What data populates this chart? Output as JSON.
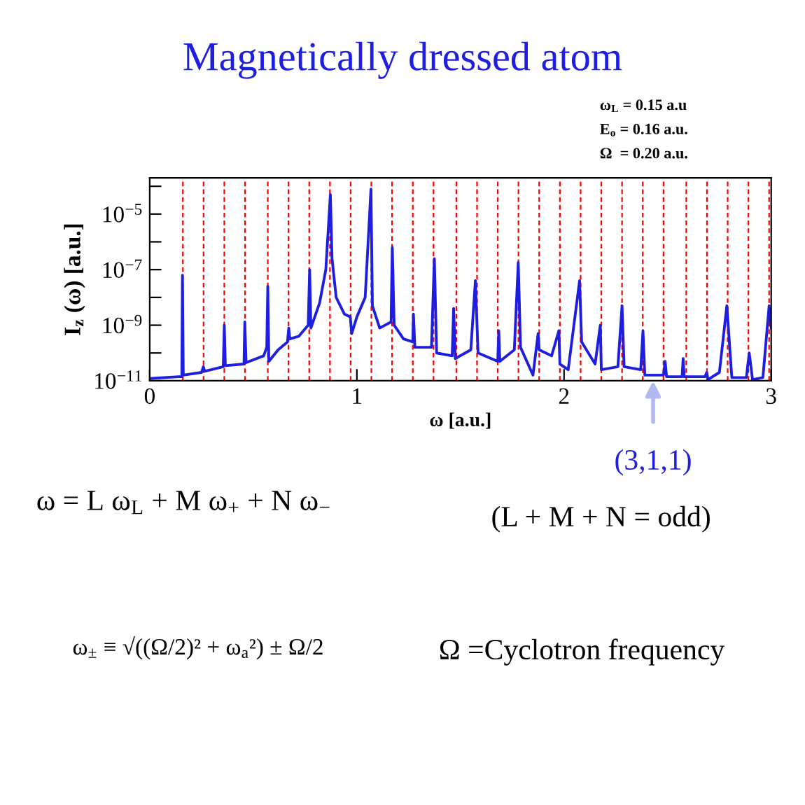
{
  "chart_data": {
    "type": "line",
    "title": "Magnetically dressed atom",
    "xlabel": "ω [a.u.]",
    "ylabel": "I$_{z}$ (ω) [a.u.]",
    "log": "y",
    "xlim": [
      0,
      3
    ],
    "xticks": [
      0,
      1,
      2,
      3
    ],
    "ylim": [
      1e-11,
      0.0002
    ],
    "yticks": [
      {
        "value": 1e-11,
        "label": "10$^{−11}$"
      },
      {
        "value": 1e-10,
        "label": null
      },
      {
        "value": 1e-09,
        "label": "10$^{−9}$"
      },
      {
        "value": 1e-08,
        "label": null
      },
      {
        "value": 1e-07,
        "label": "10$^{−7}$"
      },
      {
        "value": 1e-06,
        "label": null
      },
      {
        "value": 1e-05,
        "label": "10$^{−5}$"
      },
      {
        "value": 0.0001,
        "label": null
      }
    ],
    "grid": false,
    "legend": false,
    "marker": "none",
    "line_style": "solid",
    "series": [
      {
        "color": "#1e1ee0",
        "x": [
          0,
          0.14,
          0.155,
          0.158,
          0.162,
          0.25,
          0.259,
          0.265,
          0.355,
          0.36,
          0.365,
          0.455,
          0.459,
          0.465,
          0.55,
          0.565,
          0.57,
          0.575,
          0.62,
          0.665,
          0.671,
          0.676,
          0.72,
          0.765,
          0.772,
          0.778,
          0.82,
          0.85,
          0.872,
          0.88,
          0.9,
          0.94,
          0.968,
          0.975,
          1.0,
          1.04,
          1.068,
          1.075,
          1.11,
          1.165,
          1.171,
          1.18,
          1.225,
          1.27,
          1.273,
          1.28,
          1.36,
          1.374,
          1.385,
          1.46,
          1.467,
          1.475,
          1.55,
          1.572,
          1.585,
          1.68,
          1.685,
          1.69,
          1.76,
          1.779,
          1.79,
          1.85,
          1.875,
          1.88,
          1.94,
          1.975,
          1.98,
          2.02,
          2.075,
          2.085,
          2.15,
          2.175,
          2.18,
          2.26,
          2.28,
          2.29,
          2.37,
          2.381,
          2.39,
          2.48,
          2.488,
          2.495,
          2.57,
          2.575,
          2.58,
          2.68,
          2.689,
          2.695,
          2.75,
          2.786,
          2.81,
          2.88,
          2.894,
          2.91,
          2.96,
          2.99,
          3.0
        ],
        "values": [
          1.2e-11,
          1.4e-11,
          1.4e-11,
          6.3e-08,
          1.6e-11,
          2e-11,
          3.2e-11,
          2.2e-11,
          3.2e-11,
          1e-09,
          3.5e-11,
          4e-11,
          1.3e-09,
          4.5e-11,
          7.9e-11,
          1.6e-10,
          2.5e-08,
          5e-11,
          1.3e-10,
          2.5e-10,
          7.9e-10,
          3.2e-10,
          4e-10,
          1e-09,
          1e-07,
          7.9e-10,
          6.3e-09,
          1e-07,
          5e-05,
          2.5e-07,
          1e-08,
          2.5e-09,
          2e-09,
          5e-10,
          2e-09,
          1e-08,
          7.9e-05,
          5e-09,
          7.9e-10,
          1.3e-09,
          6.3e-07,
          1e-09,
          3.2e-10,
          2.5e-10,
          2.5e-09,
          1.6e-10,
          1.6e-10,
          2.5e-07,
          1e-10,
          7.9e-11,
          4e-09,
          6.3e-11,
          1.3e-10,
          4e-08,
          1e-10,
          5e-11,
          6.3e-10,
          5e-11,
          1.3e-10,
          1.8e-07,
          1.6e-10,
          1.6e-11,
          5e-10,
          1.3e-10,
          7.9e-11,
          6.3e-10,
          4e-11,
          2.5e-11,
          4e-08,
          2.5e-10,
          4e-11,
          1e-09,
          2.5e-11,
          3.2e-11,
          5e-09,
          3.2e-11,
          2.5e-11,
          6.3e-10,
          1.6e-11,
          1.6e-11,
          5e-11,
          1.4e-11,
          1.4e-11,
          6.3e-11,
          1.4e-11,
          1.4e-11,
          2e-11,
          1.1e-11,
          2e-11,
          5e-09,
          1.3e-11,
          1.3e-11,
          1e-10,
          1.1e-11,
          1.3e-11,
          5e-09,
          7.9e-10
        ]
      }
    ],
    "ref_lines": [
      {
        "axis": "x",
        "value": 0.16,
        "color": "#ff0000",
        "line_style": "dashed"
      },
      {
        "axis": "x",
        "value": 0.26,
        "color": "#ff0000",
        "line_style": "dashed"
      },
      {
        "axis": "x",
        "value": 0.36,
        "color": "#ff0000",
        "line_style": "dashed"
      },
      {
        "axis": "x",
        "value": 0.46,
        "color": "#ff0000",
        "line_style": "dashed"
      },
      {
        "axis": "x",
        "value": 0.57,
        "color": "#ff0000",
        "line_style": "dashed"
      },
      {
        "axis": "x",
        "value": 0.67,
        "color": "#ff0000",
        "line_style": "dashed"
      },
      {
        "axis": "x",
        "value": 0.77,
        "color": "#ff0000",
        "line_style": "dashed"
      },
      {
        "axis": "x",
        "value": 0.87,
        "color": "#ff0000",
        "line_style": "dashed"
      },
      {
        "axis": "x",
        "value": 0.97,
        "color": "#ff0000",
        "line_style": "dashed"
      },
      {
        "axis": "x",
        "value": 1.07,
        "color": "#ff0000",
        "line_style": "dashed"
      },
      {
        "axis": "x",
        "value": 1.17,
        "color": "#ff0000",
        "line_style": "dashed"
      },
      {
        "axis": "x",
        "value": 1.27,
        "color": "#ff0000",
        "line_style": "dashed"
      },
      {
        "axis": "x",
        "value": 1.37,
        "color": "#ff0000",
        "line_style": "dashed"
      },
      {
        "axis": "x",
        "value": 1.48,
        "color": "#ff0000",
        "line_style": "dashed"
      },
      {
        "axis": "x",
        "value": 1.58,
        "color": "#ff0000",
        "line_style": "dashed"
      },
      {
        "axis": "x",
        "value": 1.68,
        "color": "#ff0000",
        "line_style": "dashed"
      },
      {
        "axis": "x",
        "value": 1.78,
        "color": "#ff0000",
        "line_style": "dashed"
      },
      {
        "axis": "x",
        "value": 1.88,
        "color": "#ff0000",
        "line_style": "dashed"
      },
      {
        "axis": "x",
        "value": 1.98,
        "color": "#ff0000",
        "line_style": "dashed"
      },
      {
        "axis": "x",
        "value": 2.08,
        "color": "#ff0000",
        "line_style": "dashed"
      },
      {
        "axis": "x",
        "value": 2.18,
        "color": "#ff0000",
        "line_style": "dashed"
      },
      {
        "axis": "x",
        "value": 2.28,
        "color": "#ff0000",
        "line_style": "dashed"
      },
      {
        "axis": "x",
        "value": 2.38,
        "color": "#ff0000",
        "line_style": "dashed"
      },
      {
        "axis": "x",
        "value": 2.48,
        "color": "#ff0000",
        "line_style": "dashed"
      },
      {
        "axis": "x",
        "value": 2.59,
        "color": "#ff0000",
        "line_style": "dashed"
      },
      {
        "axis": "x",
        "value": 2.69,
        "color": "#ff0000",
        "line_style": "dashed"
      },
      {
        "axis": "x",
        "value": 2.79,
        "color": "#ff0000",
        "line_style": "dashed"
      },
      {
        "axis": "x",
        "value": 2.89,
        "color": "#ff0000",
        "line_style": "dashed"
      },
      {
        "axis": "x",
        "value": 2.99,
        "color": "#ff0000",
        "line_style": "dashed"
      }
    ],
    "annotations": [
      {
        "text": "(3,1,1)",
        "x": 2.43,
        "y": 1e-11
      },
      "ω$_{L}$ = 0.15 a.u",
      "E$_{o}$ = 0.16 a.u.",
      "Ω  = 0.20 a.u.",
      "ω = L ω$_{L}$ + M ω$_{+}$ + N ω$_{−}$",
      "(L + M + N = odd)",
      "ω$_{±}$ ≡ √((Ω/2)² + ω$_{a}$²) ± Ω/2",
      "Ω =Cyclotron frequency"
    ]
  }
}
